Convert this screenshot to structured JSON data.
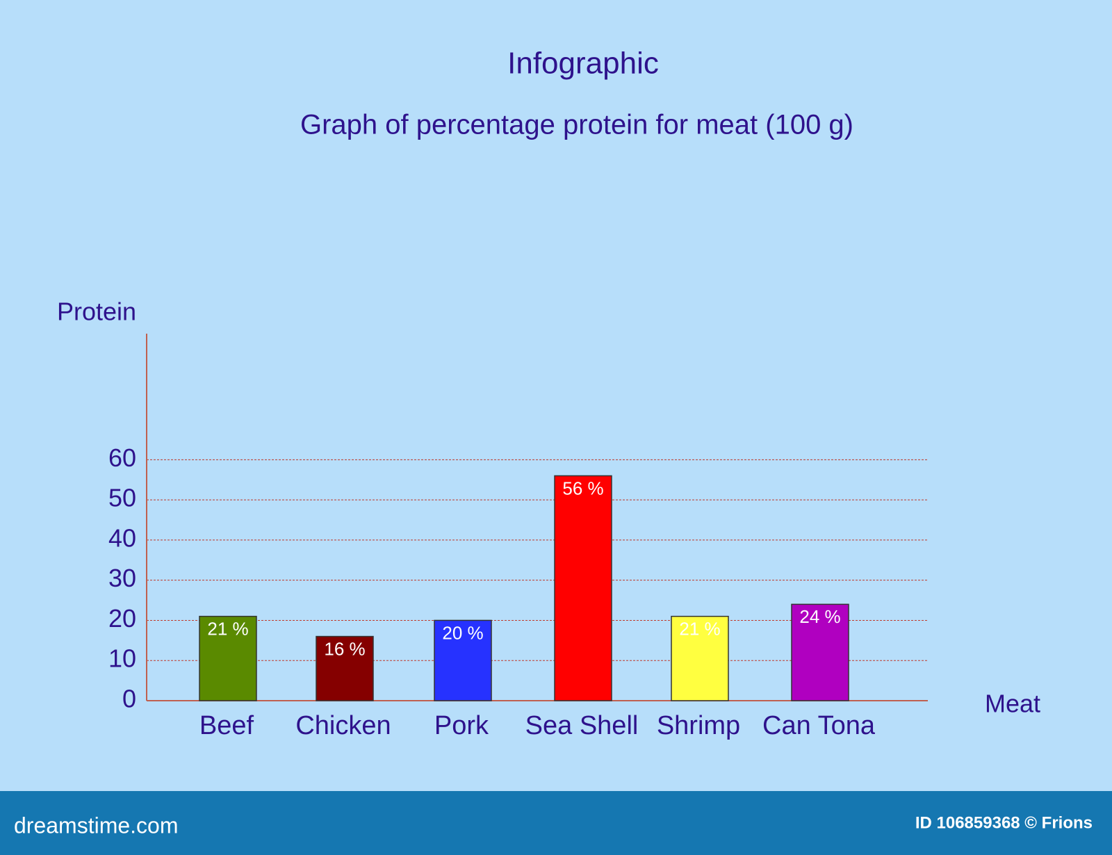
{
  "chart_data": {
    "type": "bar",
    "title": "Infographic",
    "subtitle": "Graph of percentage protein for meat (100 g)",
    "y_label": "Protein",
    "x_label": "Meat",
    "categories": [
      "Beef",
      "Chicken",
      "Pork",
      "Sea Shell",
      "Shrimp",
      "Can Tona"
    ],
    "values": [
      21,
      16,
      20,
      56,
      21,
      24
    ],
    "value_labels": [
      "21 %",
      "16 %",
      "20 %",
      "56 %",
      "21 %",
      "24 %"
    ],
    "colors": [
      "#5a8a00",
      "#850000",
      "#2632ff",
      "#ff0000",
      "#ffff40",
      "#b000c0"
    ],
    "ylim": [
      0,
      90
    ],
    "yticks": [
      0,
      10,
      20,
      30,
      40,
      50,
      60
    ],
    "grid": true
  },
  "footer": {
    "logo": "dreamstime.com",
    "id": "ID 106859368 © Frions"
  }
}
